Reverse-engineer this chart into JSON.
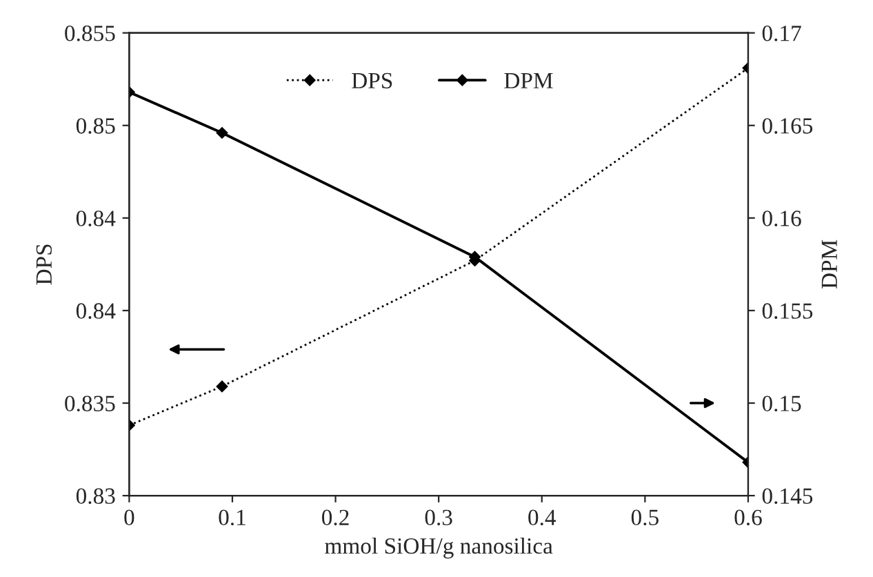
{
  "chart_data": {
    "type": "line",
    "xlabel": "mmol SiOH/g nanosilica",
    "ylabel": "DPS",
    "y2label": "DPM",
    "x": [
      0,
      0.09,
      0.335,
      0.6
    ],
    "series": [
      {
        "name": "DPS",
        "color": "#000000",
        "values": [
          0.8338,
          0.8359,
          0.8427,
          0.8531
        ],
        "line_style": "dotted"
      },
      {
        "name": "DPM",
        "color": "#000000",
        "values": [
          0.1668,
          0.1646,
          0.1579,
          0.1468
        ],
        "line_style": "solid",
        "axis": "y2"
      }
    ],
    "xlim": [
      0,
      0.6
    ],
    "xticks": [
      0,
      0.1,
      0.2,
      0.3,
      0.4,
      0.5,
      0.6
    ],
    "ylim": [
      0.83,
      0.855
    ],
    "yticks": [
      0.83,
      0.835,
      0.84,
      {
        "value": 0.845,
        "label": "0.84"
      },
      0.85,
      0.855
    ],
    "y2lim": [
      0.145,
      0.17
    ],
    "y2ticks": [
      0.145,
      0.15,
      0.155,
      0.16,
      0.165,
      0.17
    ],
    "marker": "diamond",
    "grid": false,
    "legend": "top"
  }
}
